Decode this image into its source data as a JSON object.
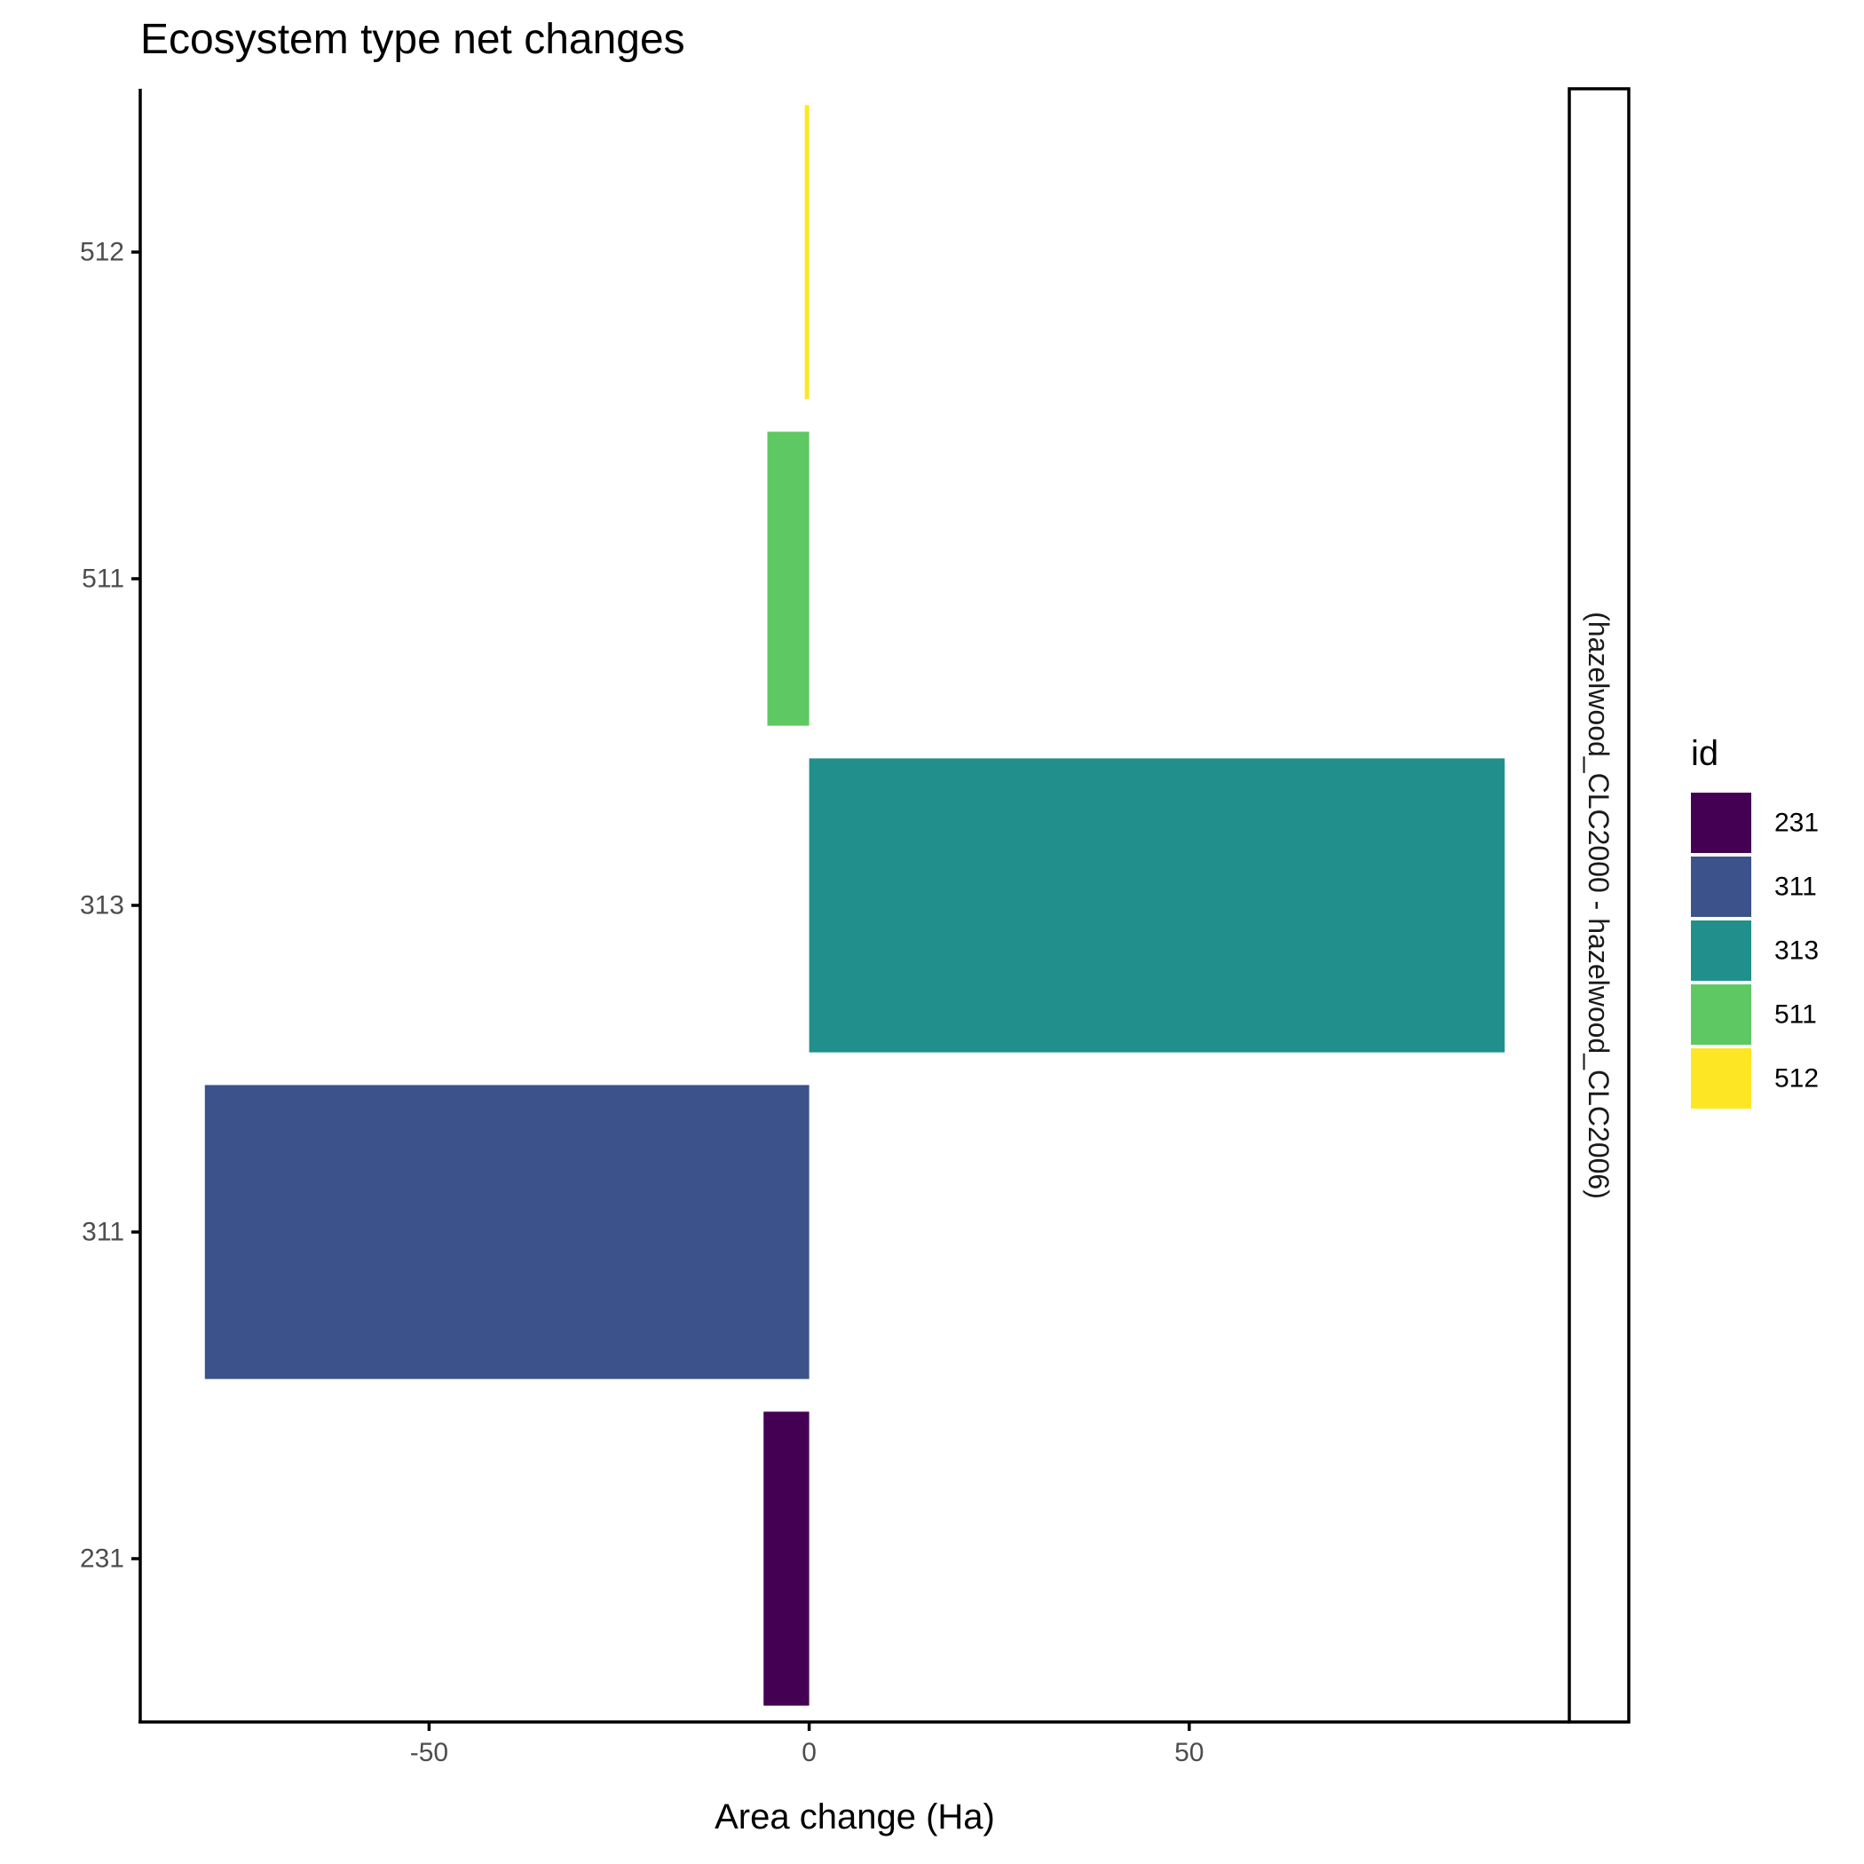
{
  "chart_data": {
    "type": "bar",
    "orientation": "horizontal",
    "title": "Ecosystem type net changes",
    "xlabel": "Area change (Ha)",
    "ylabel": "",
    "categories": [
      "231",
      "311",
      "313",
      "511",
      "512"
    ],
    "values": [
      -6,
      -79.5,
      91.5,
      -5.5,
      -0.5
    ],
    "colors": [
      "#440154",
      "#3b528b",
      "#21908c",
      "#5ec962",
      "#fde725"
    ],
    "xlim": [
      -88,
      100
    ],
    "xticks": [
      -50,
      0,
      50
    ],
    "xtick_labels": [
      "-50",
      "0",
      "50"
    ],
    "facet_label": "(hazelwood_CLC2000 - hazelwood_CLC2006)",
    "grid": false,
    "legend": {
      "title": "id",
      "position": "right",
      "items": [
        "231",
        "311",
        "313",
        "511",
        "512"
      ]
    }
  }
}
